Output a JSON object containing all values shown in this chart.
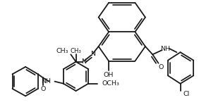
{
  "bg_color": "#ffffff",
  "line_color": "#1a1a1a",
  "line_width": 1.3,
  "font_size": 6.8,
  "fig_width": 2.96,
  "fig_height": 1.6,
  "dpi": 100
}
